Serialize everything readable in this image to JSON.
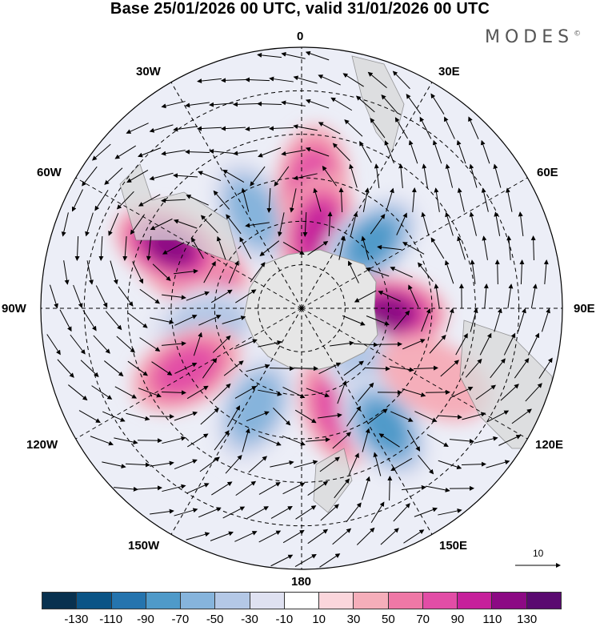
{
  "title": "Base 25/01/2026 00 UTC, valid 31/01/2026 00 UTC",
  "brand": "MODES",
  "brand_mark": "©",
  "longitude_labels": {
    "lon_0": "0",
    "lon_30e": "30E",
    "lon_60e": "60E",
    "lon_90e": "90E",
    "lon_120e": "120E",
    "lon_150e": "150E",
    "lon_180": "180",
    "lon_150w": "150W",
    "lon_120w": "120W",
    "lon_90w": "90W",
    "lon_60w": "60W",
    "lon_30w": "30W"
  },
  "reference_vector": "10",
  "colorbar": {
    "colors": [
      "#08314f",
      "#0b5486",
      "#2574ae",
      "#4f9ac9",
      "#86b4dc",
      "#b4c8e6",
      "#dfe1f1",
      "#ffffff",
      "#fbd6dc",
      "#f5aeba",
      "#ef78a6",
      "#e24da6",
      "#c6209b",
      "#8c0a84",
      "#5a0a70"
    ],
    "tick_labels": [
      "-130",
      "-110",
      "-90",
      "-70",
      "-50",
      "-30",
      "-10",
      "10",
      "30",
      "50",
      "70",
      "90",
      "110",
      "130"
    ]
  },
  "chart_data": {
    "type": "polar-stereographic field map (southern hemisphere)",
    "field": "shaded anomaly with wind-vector arrows",
    "title": "Base 25/01/2026 00 UTC, valid 31/01/2026 00 UTC",
    "color_levels": [
      -130,
      -110,
      -90,
      -70,
      -50,
      -30,
      -10,
      10,
      30,
      50,
      70,
      90,
      110,
      130
    ],
    "anomaly_centres": [
      {
        "lon": -27,
        "lat": -53,
        "value": -70
      },
      {
        "lon": 5,
        "lat": -47,
        "value": 70
      },
      {
        "lon": 12,
        "lat": -63,
        "value": 90
      },
      {
        "lon": 47,
        "lat": -57,
        "value": -90
      },
      {
        "lon": 93,
        "lat": -60,
        "value": 110
      },
      {
        "lon": -70,
        "lat": -50,
        "value": 90
      },
      {
        "lon": -65,
        "lat": -40,
        "value": 110
      },
      {
        "lon": -100,
        "lat": -57,
        "value": -50
      },
      {
        "lon": -118,
        "lat": -45,
        "value": 70
      },
      {
        "lon": -155,
        "lat": -52,
        "value": -70
      },
      {
        "lon": 160,
        "lat": -53,
        "value": 70
      },
      {
        "lon": 132,
        "lat": -59,
        "value": -50
      },
      {
        "lon": 145,
        "lat": -40,
        "value": -90
      },
      {
        "lon": 118,
        "lat": -38,
        "value": 30
      }
    ]
  }
}
